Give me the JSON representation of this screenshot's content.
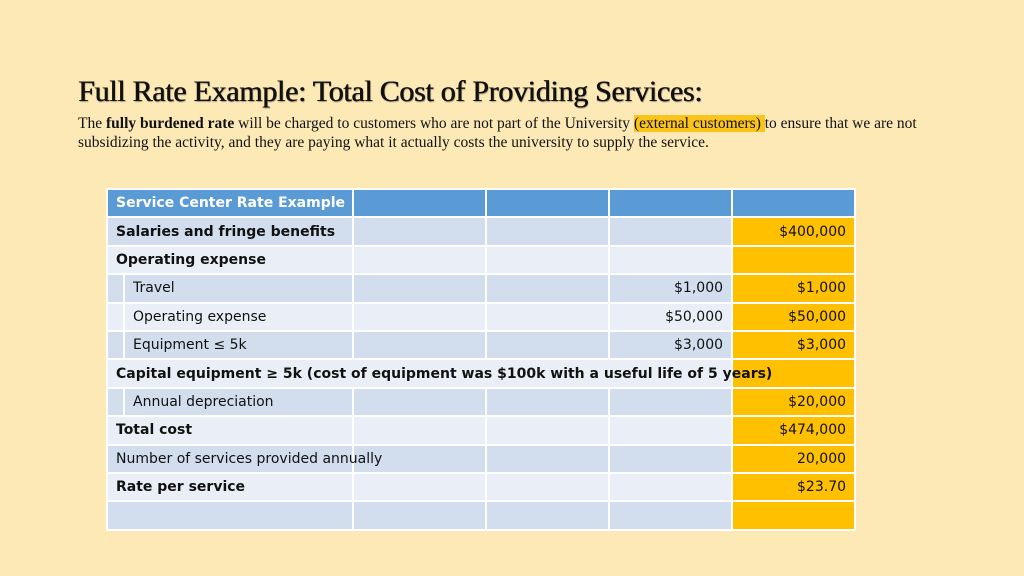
{
  "title": "Full Rate Example: Total Cost of Providing Services:",
  "intro": {
    "t1": "The ",
    "bold": "fully burdened rate",
    "t2": " will be charged to customers who are not part of the University ",
    "highlight": "(external customers) ",
    "t3": "to ensure that we are not subsidizing the activity, and they are paying what it actually costs the university to supply the service."
  },
  "table": {
    "header": "Service Center Rate Example",
    "rows": [
      {
        "label": "Salaries and fringe benefits",
        "sub": "",
        "total": "$400,000"
      },
      {
        "label": "Operating expense",
        "sub": "",
        "total": ""
      },
      {
        "label": "Travel",
        "sub": "$1,000",
        "total": "$1,000"
      },
      {
        "label": "Operating expense",
        "sub": "$50,000",
        "total": "$50,000"
      },
      {
        "label": "Equipment ≤ 5k",
        "sub": "$3,000",
        "total": "$3,000"
      },
      {
        "label": "Capital equipment ≥ 5k (cost of equipment was $100k with a useful life of 5 years)",
        "sub": "",
        "total": ""
      },
      {
        "label": "Annual depreciation",
        "sub": "",
        "total": "$20,000"
      },
      {
        "label": "Total cost",
        "sub": "",
        "total": "$474,000"
      },
      {
        "label": "Number of services provided annually",
        "sub": "",
        "total": "20,000"
      },
      {
        "label": "Rate per service",
        "sub": "",
        "total": "$23.70"
      }
    ]
  },
  "colors": {
    "background": "#fde9b6",
    "header_blue": "#5b9bd5",
    "row_dark": "#d2deee",
    "row_light": "#eaeff7",
    "highlight_gold": "#ffc000"
  }
}
